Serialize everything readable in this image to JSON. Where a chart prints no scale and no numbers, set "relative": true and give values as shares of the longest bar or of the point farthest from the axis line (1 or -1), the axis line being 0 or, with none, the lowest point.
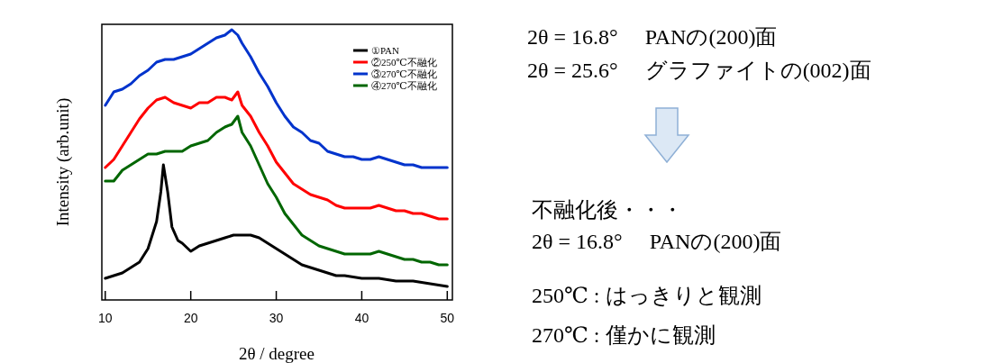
{
  "chart_data": {
    "type": "line",
    "relative": true,
    "xlabel": "2θ / degree",
    "ylabel": "Intensity (arb.unit)",
    "xlim": [
      9.6,
      50.6
    ],
    "xticks": [
      10,
      20,
      30,
      40,
      50
    ],
    "tick_labels": "x",
    "grid": false,
    "legend": "top right",
    "marker": "none",
    "line_style": "solid",
    "x": [
      10,
      11,
      12,
      13,
      14,
      15,
      16,
      17,
      18,
      19,
      20,
      21,
      22,
      23,
      24,
      24.8,
      25.5,
      26,
      27,
      28,
      29,
      30,
      31,
      32,
      33,
      34,
      35,
      36,
      37,
      38,
      39,
      40,
      41,
      42,
      43,
      44,
      45,
      46,
      47,
      48,
      49,
      50
    ],
    "series": [
      {
        "name": "①PAN",
        "color": "#000000",
        "x": [
          10,
          11,
          12,
          13,
          14,
          15,
          16,
          16.5,
          16.8,
          17.3,
          17.8,
          18.5,
          19,
          20,
          21,
          22,
          23,
          24,
          25,
          26,
          27,
          28,
          29,
          30,
          31,
          32,
          33,
          34,
          35,
          36,
          37,
          38,
          40,
          42,
          44,
          46,
          48,
          50
        ],
        "values": [
          0.08,
          0.09,
          0.1,
          0.12,
          0.14,
          0.19,
          0.29,
          0.4,
          0.5,
          0.4,
          0.27,
          0.22,
          0.21,
          0.18,
          0.2,
          0.21,
          0.22,
          0.23,
          0.24,
          0.24,
          0.24,
          0.23,
          0.21,
          0.19,
          0.17,
          0.15,
          0.13,
          0.12,
          0.11,
          0.1,
          0.09,
          0.09,
          0.08,
          0.08,
          0.07,
          0.07,
          0.06,
          0.05
        ]
      },
      {
        "name": "②250℃不融化",
        "color": "#ff0000",
        "values": [
          0.49,
          0.52,
          0.57,
          0.62,
          0.67,
          0.71,
          0.74,
          0.75,
          0.73,
          0.72,
          0.71,
          0.73,
          0.73,
          0.75,
          0.75,
          0.74,
          0.77,
          0.72,
          0.68,
          0.62,
          0.57,
          0.51,
          0.47,
          0.43,
          0.41,
          0.39,
          0.38,
          0.37,
          0.35,
          0.34,
          0.34,
          0.34,
          0.34,
          0.35,
          0.34,
          0.33,
          0.33,
          0.32,
          0.32,
          0.31,
          0.3,
          0.3
        ]
      },
      {
        "name": "③270℃不融化",
        "color": "#0033cc",
        "values": [
          0.72,
          0.77,
          0.78,
          0.8,
          0.83,
          0.85,
          0.88,
          0.89,
          0.89,
          0.9,
          0.91,
          0.93,
          0.95,
          0.97,
          0.98,
          1.0,
          0.98,
          0.95,
          0.9,
          0.84,
          0.79,
          0.73,
          0.68,
          0.64,
          0.62,
          0.59,
          0.58,
          0.55,
          0.54,
          0.53,
          0.53,
          0.52,
          0.52,
          0.53,
          0.52,
          0.51,
          0.5,
          0.5,
          0.49,
          0.49,
          0.49,
          0.49
        ]
      },
      {
        "name": "④270℃不融化",
        "color": "#006600",
        "values": [
          0.44,
          0.44,
          0.48,
          0.5,
          0.52,
          0.54,
          0.54,
          0.55,
          0.55,
          0.55,
          0.57,
          0.58,
          0.59,
          0.62,
          0.64,
          0.65,
          0.68,
          0.62,
          0.57,
          0.5,
          0.43,
          0.38,
          0.32,
          0.28,
          0.24,
          0.22,
          0.2,
          0.19,
          0.18,
          0.17,
          0.17,
          0.17,
          0.17,
          0.18,
          0.17,
          0.16,
          0.15,
          0.15,
          0.14,
          0.14,
          0.13,
          0.13
        ]
      }
    ],
    "annotations": [
      "2θ = 16.8°　 PANの(200)面",
      "2θ = 25.6°　 グラファイトの(002)面",
      "不融化後・・・",
      "2θ = 16.8°　 PANの(200)面",
      "250℃ : はっきりと観測",
      "270℃ : 僅かに観測"
    ]
  }
}
